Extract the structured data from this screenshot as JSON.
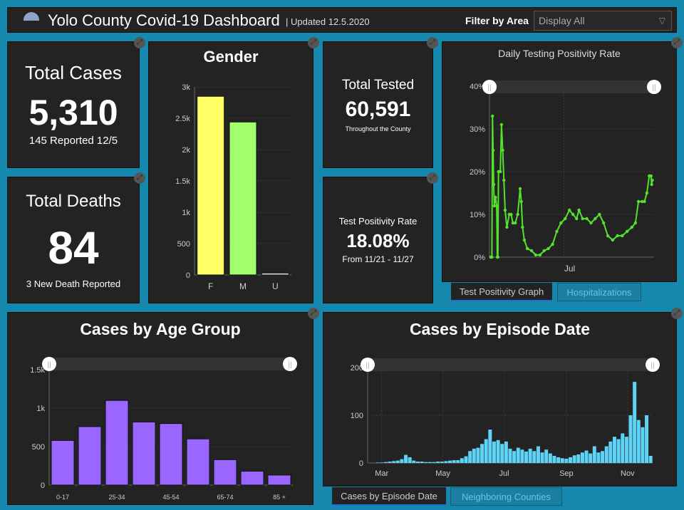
{
  "header": {
    "title": "Yolo County Covid-19 Dashboard",
    "updated": "| Updated 12.5.2020",
    "filter_label": "Filter by Area",
    "filter_value": "Display All"
  },
  "total_cases": {
    "label": "Total Cases",
    "value": "5,310",
    "sub": "145 Reported 12/5"
  },
  "total_deaths": {
    "label": "Total Deaths",
    "value": "84",
    "sub": "3 New Death Reported"
  },
  "total_tested": {
    "label": "Total Tested",
    "value": "60,591",
    "sub": "Throughout the County"
  },
  "positivity": {
    "label": "Test Positivity Rate",
    "value": "18.08%",
    "sub": "From 11/21 - 11/27"
  },
  "tabs_right": [
    "Test Positivity Graph",
    "Hospitalizations"
  ],
  "tabs_bottom": [
    "Cases by Episode Date",
    "Neighboring Counties"
  ],
  "colors": {
    "background": "#1687ad",
    "panel": "#232323",
    "female": "#ffff66",
    "male": "#a4ff6e",
    "unknown": "#dddddd",
    "age": "#9966ff",
    "positivity": "#55e22a",
    "episode": "#5fd3f5"
  },
  "chart_data": [
    {
      "type": "bar",
      "title": "Gender",
      "categories": [
        "F",
        "M",
        "U"
      ],
      "values": [
        2850,
        2440,
        30
      ],
      "ylim": [
        0,
        3000
      ],
      "yticks": [
        "0",
        "500",
        "1k",
        "1.5k",
        "2k",
        "2.5k",
        "3k"
      ],
      "grid": true
    },
    {
      "type": "line",
      "title": "Daily Testing Positivity Rate",
      "ylim": [
        0,
        40
      ],
      "yticks": [
        "0%",
        "10%",
        "20%",
        "30%",
        "40%"
      ],
      "xticks": [
        "Jul"
      ],
      "grid": true,
      "points": [
        [
          "2020-03-01",
          0
        ],
        [
          "2020-03-03",
          0
        ],
        [
          "2020-03-04",
          33
        ],
        [
          "2020-03-05",
          25
        ],
        [
          "2020-03-06",
          17
        ],
        [
          "2020-03-07",
          12
        ],
        [
          "2020-03-09",
          14
        ],
        [
          "2020-03-11",
          12
        ],
        [
          "2020-03-12",
          0
        ],
        [
          "2020-03-13",
          0
        ],
        [
          "2020-03-14",
          20
        ],
        [
          "2020-03-17",
          20
        ],
        [
          "2020-03-19",
          31
        ],
        [
          "2020-03-21",
          25
        ],
        [
          "2020-03-23",
          18
        ],
        [
          "2020-03-25",
          11
        ],
        [
          "2020-03-28",
          7
        ],
        [
          "2020-04-01",
          10
        ],
        [
          "2020-04-04",
          10
        ],
        [
          "2020-04-07",
          8
        ],
        [
          "2020-04-11",
          8
        ],
        [
          "2020-04-15",
          10
        ],
        [
          "2020-04-19",
          16
        ],
        [
          "2020-04-21",
          13
        ],
        [
          "2020-04-23",
          7
        ],
        [
          "2020-04-26",
          4
        ],
        [
          "2020-05-01",
          2
        ],
        [
          "2020-05-08",
          1.5
        ],
        [
          "2020-05-15",
          0.5
        ],
        [
          "2020-05-22",
          0.5
        ],
        [
          "2020-05-29",
          1.5
        ],
        [
          "2020-06-05",
          2
        ],
        [
          "2020-06-12",
          3
        ],
        [
          "2020-06-19",
          6
        ],
        [
          "2020-06-26",
          8
        ],
        [
          "2020-07-03",
          9
        ],
        [
          "2020-07-10",
          11
        ],
        [
          "2020-07-16",
          10
        ],
        [
          "2020-07-22",
          9
        ],
        [
          "2020-07-26",
          11
        ],
        [
          "2020-08-01",
          9
        ],
        [
          "2020-08-08",
          9
        ],
        [
          "2020-08-15",
          8
        ],
        [
          "2020-08-22",
          9
        ],
        [
          "2020-08-29",
          10
        ],
        [
          "2020-09-05",
          8
        ],
        [
          "2020-09-12",
          5
        ],
        [
          "2020-09-20",
          4
        ],
        [
          "2020-09-28",
          5
        ],
        [
          "2020-10-06",
          5
        ],
        [
          "2020-10-14",
          6
        ],
        [
          "2020-10-22",
          7
        ],
        [
          "2020-10-28",
          8
        ],
        [
          "2020-11-02",
          13
        ],
        [
          "2020-11-08",
          13
        ],
        [
          "2020-11-12",
          13
        ],
        [
          "2020-11-16",
          15
        ],
        [
          "2020-11-20",
          19
        ],
        [
          "2020-11-23",
          19
        ],
        [
          "2020-11-24",
          17
        ],
        [
          "2020-11-25",
          18
        ]
      ]
    },
    {
      "type": "bar",
      "title": "Cases by Age Group",
      "categories": [
        "0-17",
        "",
        "25-34",
        "",
        "45-54",
        "",
        "65-74",
        "",
        "85 +"
      ],
      "values": [
        580,
        760,
        1100,
        820,
        800,
        600,
        330,
        180,
        130
      ],
      "ylim": [
        0,
        1500
      ],
      "yticks": [
        "0",
        "500",
        "1k",
        "1.5k"
      ],
      "grid": true
    },
    {
      "type": "bar",
      "title": "Cases by Episode Date",
      "ylim": [
        0,
        200
      ],
      "yticks": [
        "0",
        "100",
        "200"
      ],
      "xticks": [
        "Mar",
        "May",
        "Jul",
        "Sep",
        "Nov"
      ],
      "grid": true,
      "points": [
        [
          "2020-02-26",
          1
        ],
        [
          "2020-03-01",
          1
        ],
        [
          "2020-03-05",
          2
        ],
        [
          "2020-03-09",
          3
        ],
        [
          "2020-03-13",
          4
        ],
        [
          "2020-03-17",
          5
        ],
        [
          "2020-03-21",
          8
        ],
        [
          "2020-03-25",
          17
        ],
        [
          "2020-03-29",
          12
        ],
        [
          "2020-04-02",
          5
        ],
        [
          "2020-04-06",
          3
        ],
        [
          "2020-04-10",
          3
        ],
        [
          "2020-04-14",
          2
        ],
        [
          "2020-04-18",
          2
        ],
        [
          "2020-04-22",
          2
        ],
        [
          "2020-04-26",
          3
        ],
        [
          "2020-04-30",
          3
        ],
        [
          "2020-05-04",
          4
        ],
        [
          "2020-05-08",
          5
        ],
        [
          "2020-05-12",
          6
        ],
        [
          "2020-05-16",
          6
        ],
        [
          "2020-05-20",
          10
        ],
        [
          "2020-05-24",
          14
        ],
        [
          "2020-05-28",
          25
        ],
        [
          "2020-06-01",
          30
        ],
        [
          "2020-06-05",
          32
        ],
        [
          "2020-06-09",
          40
        ],
        [
          "2020-06-13",
          50
        ],
        [
          "2020-06-17",
          70
        ],
        [
          "2020-06-21",
          45
        ],
        [
          "2020-06-25",
          48
        ],
        [
          "2020-06-29",
          40
        ],
        [
          "2020-07-03",
          45
        ],
        [
          "2020-07-07",
          30
        ],
        [
          "2020-07-11",
          25
        ],
        [
          "2020-07-15",
          32
        ],
        [
          "2020-07-19",
          28
        ],
        [
          "2020-07-23",
          24
        ],
        [
          "2020-07-27",
          30
        ],
        [
          "2020-07-31",
          25
        ],
        [
          "2020-08-04",
          35
        ],
        [
          "2020-08-08",
          22
        ],
        [
          "2020-08-12",
          28
        ],
        [
          "2020-08-16",
          20
        ],
        [
          "2020-08-20",
          15
        ],
        [
          "2020-08-24",
          12
        ],
        [
          "2020-08-28",
          10
        ],
        [
          "2020-09-01",
          9
        ],
        [
          "2020-09-05",
          12
        ],
        [
          "2020-09-09",
          16
        ],
        [
          "2020-09-13",
          18
        ],
        [
          "2020-09-17",
          22
        ],
        [
          "2020-09-21",
          26
        ],
        [
          "2020-09-25",
          20
        ],
        [
          "2020-09-29",
          35
        ],
        [
          "2020-10-03",
          22
        ],
        [
          "2020-10-07",
          25
        ],
        [
          "2020-10-11",
          35
        ],
        [
          "2020-10-15",
          45
        ],
        [
          "2020-10-19",
          55
        ],
        [
          "2020-10-23",
          50
        ],
        [
          "2020-10-27",
          62
        ],
        [
          "2020-10-31",
          55
        ],
        [
          "2020-11-04",
          100
        ],
        [
          "2020-11-08",
          170
        ],
        [
          "2020-11-12",
          90
        ],
        [
          "2020-11-16",
          75
        ],
        [
          "2020-11-20",
          100
        ],
        [
          "2020-11-24",
          15
        ]
      ]
    }
  ]
}
